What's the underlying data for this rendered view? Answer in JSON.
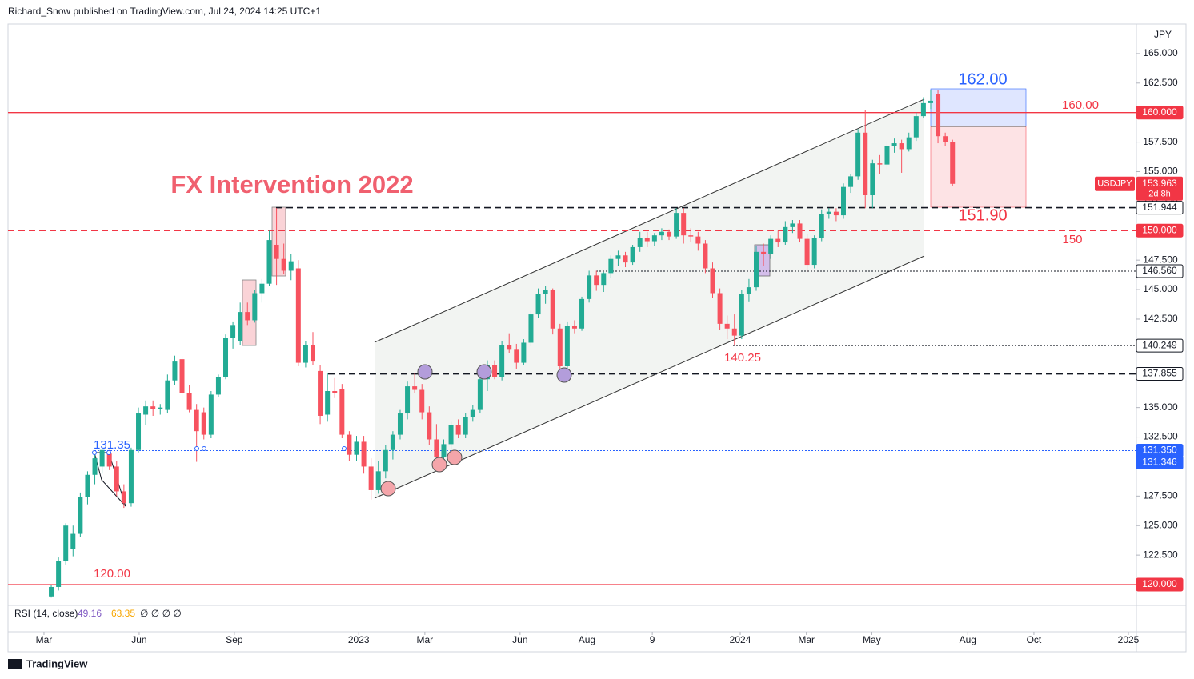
{
  "header": "Richard_Snow published on TradingView.com, Jul 24, 2024 14:25 UTC+1",
  "footer": "TradingView",
  "chart_data": {
    "type": "candlestick",
    "currency": "JPY",
    "up_color": "#22ab94",
    "down_color": "#f7525f",
    "ohlc": [
      [
        119.0,
        120.0,
        118.9,
        119.8
      ],
      [
        119.8,
        122.3,
        119.5,
        122.0
      ],
      [
        122.0,
        125.2,
        121.7,
        125.0
      ],
      [
        123.0,
        125.0,
        122.4,
        124.3
      ],
      [
        124.3,
        127.8,
        124.0,
        127.4
      ],
      [
        127.4,
        129.6,
        126.8,
        129.3
      ],
      [
        129.3,
        131.3,
        128.5,
        130.7
      ],
      [
        130.0,
        131.6,
        129.4,
        131.4
      ],
      [
        131.1,
        131.4,
        129.7,
        130.0
      ],
      [
        130.0,
        130.5,
        127.5,
        127.9
      ],
      [
        127.9,
        128.5,
        126.5,
        126.9
      ],
      [
        126.9,
        131.6,
        126.6,
        131.4
      ],
      [
        131.4,
        135.0,
        131.2,
        134.5
      ],
      [
        134.4,
        135.6,
        133.5,
        135.1
      ],
      [
        135.1,
        135.6,
        134.3,
        134.9
      ],
      [
        134.9,
        135.3,
        134.4,
        135.0
      ],
      [
        134.8,
        137.8,
        134.5,
        137.3
      ],
      [
        137.3,
        139.4,
        136.9,
        138.9
      ],
      [
        139.1,
        139.4,
        135.6,
        136.2
      ],
      [
        136.2,
        136.9,
        134.6,
        134.8
      ],
      [
        134.8,
        135.3,
        130.4,
        133.0
      ],
      [
        134.6,
        135.0,
        132.3,
        132.7
      ],
      [
        132.7,
        136.4,
        132.4,
        136.1
      ],
      [
        136.1,
        137.8,
        135.9,
        137.6
      ],
      [
        137.6,
        141.2,
        137.4,
        140.9
      ],
      [
        140.9,
        142.3,
        140.0,
        142.0
      ],
      [
        140.6,
        143.9,
        140.3,
        143.1
      ],
      [
        143.1,
        143.9,
        142.0,
        142.4
      ],
      [
        142.4,
        145.0,
        142.2,
        144.7
      ],
      [
        144.7,
        145.9,
        143.9,
        145.5
      ],
      [
        145.5,
        150.0,
        145.3,
        149.2
      ],
      [
        148.8,
        151.9,
        145.4,
        147.6
      ],
      [
        147.6,
        148.9,
        146.3,
        146.6
      ],
      [
        146.6,
        148.0,
        145.8,
        147.4
      ],
      [
        146.8,
        147.5,
        138.5,
        138.8
      ],
      [
        138.8,
        140.6,
        138.4,
        140.3
      ],
      [
        140.3,
        141.4,
        138.6,
        138.9
      ],
      [
        138.1,
        138.6,
        133.6,
        134.3
      ],
      [
        134.4,
        137.9,
        133.8,
        136.4
      ],
      [
        136.4,
        137.5,
        135.8,
        136.2
      ],
      [
        136.6,
        137.0,
        132.4,
        132.7
      ],
      [
        132.7,
        133.0,
        130.5,
        131.0
      ],
      [
        131.0,
        132.6,
        130.5,
        132.1
      ],
      [
        132.1,
        132.6,
        129.4,
        130.0
      ],
      [
        130.0,
        130.7,
        127.2,
        128.0
      ],
      [
        128.0,
        130.5,
        127.7,
        129.6
      ],
      [
        129.6,
        131.8,
        129.0,
        131.4
      ],
      [
        131.4,
        133.0,
        130.6,
        132.7
      ],
      [
        132.7,
        134.8,
        132.3,
        134.5
      ],
      [
        134.5,
        137.2,
        134.0,
        136.8
      ],
      [
        136.8,
        137.9,
        136.2,
        136.5
      ],
      [
        136.5,
        137.0,
        134.0,
        134.6
      ],
      [
        134.6,
        135.1,
        131.8,
        132.3
      ],
      [
        132.3,
        133.6,
        129.8,
        130.8
      ],
      [
        130.8,
        132.3,
        130.2,
        131.9
      ],
      [
        131.9,
        133.8,
        131.3,
        133.5
      ],
      [
        133.5,
        134.0,
        132.4,
        132.7
      ],
      [
        132.7,
        134.5,
        132.4,
        134.2
      ],
      [
        134.2,
        135.2,
        133.8,
        134.8
      ],
      [
        134.8,
        137.6,
        134.5,
        137.4
      ],
      [
        137.4,
        139.0,
        136.4,
        138.6
      ],
      [
        138.6,
        139.0,
        137.4,
        137.6
      ],
      [
        137.6,
        140.6,
        137.3,
        140.3
      ],
      [
        140.3,
        141.3,
        139.6,
        139.9
      ],
      [
        139.9,
        140.4,
        138.3,
        138.8
      ],
      [
        138.8,
        140.8,
        138.6,
        140.5
      ],
      [
        140.5,
        143.2,
        140.2,
        142.9
      ],
      [
        142.9,
        145.1,
        142.6,
        144.6
      ],
      [
        144.6,
        145.3,
        143.8,
        145.0
      ],
      [
        145.0,
        145.1,
        141.2,
        141.7
      ],
      [
        141.7,
        142.1,
        137.2,
        138.5
      ],
      [
        138.5,
        142.3,
        138.2,
        141.9
      ],
      [
        141.9,
        142.4,
        141.3,
        141.7
      ],
      [
        141.7,
        144.4,
        141.5,
        144.2
      ],
      [
        144.2,
        146.6,
        143.9,
        146.2
      ],
      [
        146.2,
        146.6,
        144.9,
        145.4
      ],
      [
        145.4,
        146.5,
        144.8,
        146.4
      ],
      [
        146.4,
        147.9,
        146.0,
        147.6
      ],
      [
        147.6,
        148.3,
        147.0,
        147.9
      ],
      [
        147.9,
        148.2,
        146.9,
        147.3
      ],
      [
        147.3,
        148.8,
        147.1,
        148.6
      ],
      [
        148.6,
        149.9,
        148.2,
        149.4
      ],
      [
        149.4,
        149.9,
        148.6,
        149.1
      ],
      [
        149.1,
        149.8,
        148.7,
        149.6
      ],
      [
        149.6,
        150.2,
        149.2,
        149.9
      ],
      [
        149.9,
        150.1,
        149.2,
        149.5
      ],
      [
        149.5,
        151.9,
        149.3,
        151.5
      ],
      [
        151.5,
        151.9,
        148.9,
        149.6
      ],
      [
        149.6,
        150.2,
        149.0,
        149.5
      ],
      [
        149.5,
        149.9,
        148.3,
        148.9
      ],
      [
        148.9,
        149.2,
        146.4,
        146.8
      ],
      [
        146.8,
        147.3,
        144.3,
        144.7
      ],
      [
        144.7,
        145.1,
        141.6,
        142.1
      ],
      [
        142.1,
        142.8,
        140.8,
        141.7
      ],
      [
        141.7,
        142.9,
        140.25,
        141.1
      ],
      [
        141.1,
        145.0,
        140.8,
        144.6
      ],
      [
        144.6,
        145.9,
        144.0,
        145.2
      ],
      [
        145.2,
        148.7,
        144.9,
        148.2
      ],
      [
        148.2,
        148.9,
        147.0,
        148.0
      ],
      [
        148.0,
        149.6,
        147.6,
        149.3
      ],
      [
        149.3,
        150.0,
        148.6,
        149.0
      ],
      [
        149.0,
        150.8,
        148.8,
        150.3
      ],
      [
        150.3,
        150.9,
        149.8,
        150.6
      ],
      [
        150.6,
        150.9,
        149.0,
        149.3
      ],
      [
        149.3,
        149.7,
        146.5,
        147.1
      ],
      [
        147.1,
        149.6,
        146.8,
        149.4
      ],
      [
        149.4,
        151.8,
        149.1,
        151.4
      ],
      [
        151.4,
        151.9,
        151.0,
        151.6
      ],
      [
        151.6,
        151.9,
        150.8,
        151.3
      ],
      [
        151.3,
        154.0,
        151.0,
        153.7
      ],
      [
        153.7,
        154.8,
        153.2,
        154.6
      ],
      [
        154.6,
        158.6,
        154.3,
        158.3
      ],
      [
        158.3,
        160.2,
        151.9,
        153.0
      ],
      [
        153.0,
        156.0,
        151.9,
        155.7
      ],
      [
        155.7,
        156.4,
        154.8,
        155.6
      ],
      [
        155.6,
        157.6,
        155.2,
        157.2
      ],
      [
        157.2,
        157.8,
        156.6,
        157.4
      ],
      [
        157.4,
        157.7,
        154.9,
        156.9
      ],
      [
        156.9,
        158.3,
        156.7,
        157.9
      ],
      [
        157.9,
        160.0,
        157.6,
        159.7
      ],
      [
        159.7,
        161.3,
        159.5,
        160.8
      ],
      [
        160.8,
        161.9,
        160.3,
        161.0
      ],
      [
        161.6,
        161.9,
        157.4,
        158.0
      ],
      [
        158.0,
        158.3,
        157.2,
        157.5
      ],
      [
        157.5,
        157.7,
        153.8,
        153.963
      ]
    ],
    "xlim": [
      -5.95,
      149.3
    ],
    "xticks": [
      {
        "value": -1.0,
        "label": "Mar"
      },
      {
        "value": 12.1,
        "label": "Jun"
      },
      {
        "value": 25.2,
        "label": "Sep"
      },
      {
        "value": 42.3,
        "label": "2023"
      },
      {
        "value": 51.4,
        "label": "Mar"
      },
      {
        "value": 64.5,
        "label": "Jun"
      },
      {
        "value": 73.7,
        "label": "Aug"
      },
      {
        "value": 82.7,
        "label": "9"
      },
      {
        "value": 94.8,
        "label": "2024"
      },
      {
        "value": 103.9,
        "label": "Mar"
      },
      {
        "value": 112.9,
        "label": "May"
      },
      {
        "value": 126.1,
        "label": "Aug"
      },
      {
        "value": 135.2,
        "label": "Oct"
      },
      {
        "value": 148.2,
        "label": "2025"
      }
    ],
    "ylim": [
      118.85,
      167.5
    ],
    "yticks": [
      {
        "value": 122.5,
        "label": "122.500"
      },
      {
        "value": 125,
        "label": "125.000"
      },
      {
        "value": 127.5,
        "label": "127.500"
      },
      {
        "value": 130,
        "label": "130.000"
      },
      {
        "value": 132.5,
        "label": "132.500"
      },
      {
        "value": 135,
        "label": "135.000"
      },
      {
        "value": 137.5,
        "label": "137.500"
      },
      {
        "value": 140,
        "label": "140.000"
      },
      {
        "value": 142.5,
        "label": "142.500"
      },
      {
        "value": 145,
        "label": "145.000"
      },
      {
        "value": 147.5,
        "label": "147.500"
      },
      {
        "value": 150,
        "label": "150.000"
      },
      {
        "value": 152.5,
        "label": "152.500"
      },
      {
        "value": 155,
        "label": "155.000"
      },
      {
        "value": 157.5,
        "label": "157.500"
      },
      {
        "value": 160,
        "label": "160.000"
      },
      {
        "value": 162.5,
        "label": "162.500"
      },
      {
        "value": 165,
        "label": "165.000"
      }
    ],
    "levels": [
      {
        "value": 160,
        "label": "160.000",
        "color": "#f23645",
        "style": "solid"
      },
      {
        "value": 151.944,
        "label": "151.944",
        "color": "#131722",
        "style": "dashed"
      },
      {
        "value": 150,
        "label": "150.000",
        "color": "#f23645",
        "style": "dashed"
      },
      {
        "value": 146.56,
        "label": "146.560",
        "color": "#131722",
        "style": "dotted"
      },
      {
        "value": 140.249,
        "label": "140.249",
        "color": "#131722",
        "style": "dotted"
      },
      {
        "value": 137.855,
        "label": "137.855",
        "color": "#131722",
        "style": "dashed"
      },
      {
        "value": 131.35,
        "label": "131.350",
        "color": "#2962ff",
        "style": "dotted"
      },
      {
        "value": 131.346,
        "label": "131.346",
        "color": "#2962ff",
        "style": "none"
      },
      {
        "value": 120,
        "label": "120.000",
        "color": "#f23645",
        "style": "solid"
      }
    ],
    "last_price": {
      "symbol": "USDJPY",
      "value": 153.963,
      "countdown": "2d 8h",
      "color": "#f23645"
    },
    "annotations": [
      {
        "text": "FX Intervention 2022",
        "color": "#f0606f"
      },
      {
        "text": "162.00",
        "color": "#2962ff"
      },
      {
        "text": "160.00",
        "color": "#f23645"
      },
      {
        "text": "151.90",
        "color": "#f23645"
      },
      {
        "text": "150",
        "color": "#f23645"
      },
      {
        "text": "140.25",
        "color": "#f23645"
      },
      {
        "text": "131.35",
        "color": "#2962ff"
      },
      {
        "text": "120.00",
        "color": "#f23645"
      }
    ],
    "rsi": {
      "label": "RSI (14, close)",
      "values": [
        49.16,
        63.35
      ],
      "colors": [
        "#7e57c2",
        "#f7a600"
      ],
      "extra": "∅ ∅ ∅ ∅"
    }
  }
}
